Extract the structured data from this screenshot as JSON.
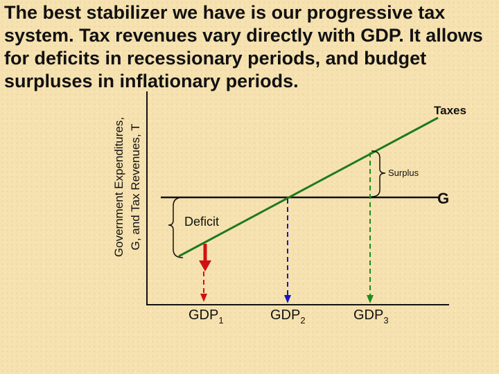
{
  "title": "The best stabilizer we have is our progressive tax system. Tax revenues vary directly with GDP. It allows for deficits in recessionary periods, and budget surpluses in inflationary periods.",
  "y_axis": {
    "line1": "Government Expenditures,",
    "line2": "G, and Tax Revenues, T"
  },
  "lines": {
    "taxes_label": "Taxes",
    "g_label": "G"
  },
  "annotations": {
    "surplus": "Surplus",
    "deficit": "Deficit"
  },
  "gdp_labels": [
    {
      "base": "GDP",
      "sub": "1"
    },
    {
      "base": "GDP",
      "sub": "2"
    },
    {
      "base": "GDP",
      "sub": "3"
    }
  ],
  "colors": {
    "taxes_line": "#1e7a1e",
    "g_line": "#111111",
    "gdp1": "#d11111",
    "gdp2": "#1515c8",
    "gdp3": "#1e8c1e",
    "deficit_arrow": "#d11111"
  }
}
